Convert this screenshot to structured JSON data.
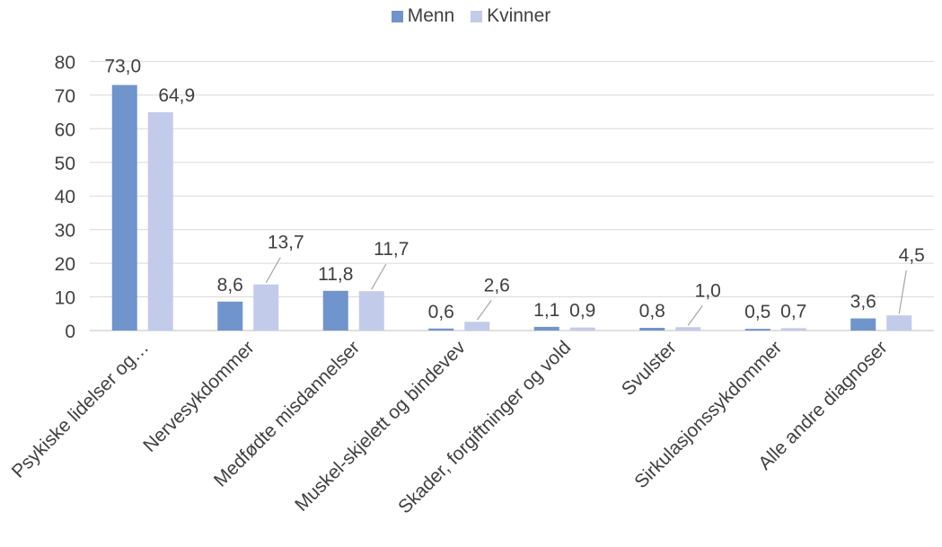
{
  "chart_data": {
    "type": "bar",
    "categories": [
      "Psykiske lidelser og…",
      "Nervesykdommer",
      "Medfødte misdannelser",
      "Muskel-skjelett og bindevev",
      "Skader, forgiftninger og vold",
      "Svulster",
      "Sirkulasjonssykdommer",
      "Alle andre diagnoser"
    ],
    "series": [
      {
        "name": "Menn",
        "color": "#7094cc",
        "values": [
          73.0,
          8.6,
          11.8,
          0.6,
          1.1,
          0.8,
          0.5,
          3.6
        ],
        "labels": [
          "73,0",
          "8,6",
          "11,8",
          "0,6",
          "1,1",
          "0,8",
          "0,5",
          "3,6"
        ]
      },
      {
        "name": "Kvinner",
        "color": "#c2cbe9",
        "values": [
          64.9,
          13.7,
          11.7,
          2.6,
          0.9,
          1.0,
          0.7,
          4.5
        ],
        "labels": [
          "64,9",
          "13,7",
          "11,7",
          "2,6",
          "0,9",
          "1,0",
          "0,7",
          "4,5"
        ]
      }
    ],
    "yticks": [
      "0",
      "10",
      "20",
      "30",
      "40",
      "50",
      "60",
      "70",
      "80"
    ],
    "ylim": [
      0,
      80
    ],
    "grid": true,
    "legend_position": "top-center"
  }
}
